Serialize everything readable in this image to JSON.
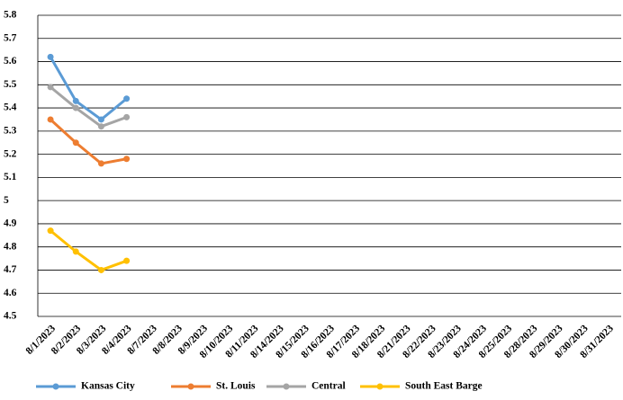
{
  "chart_data": {
    "type": "line",
    "categories": [
      "8/1/2023",
      "8/2/2023",
      "8/3/2023",
      "8/4/2023",
      "8/7/2023",
      "8/8/2023",
      "8/9/2023",
      "8/10/2023",
      "8/11/2023",
      "8/14/2023",
      "8/15/2023",
      "8/16/2023",
      "8/17/2023",
      "8/18/2023",
      "8/21/2023",
      "8/22/2023",
      "8/23/2023",
      "8/24/2023",
      "8/25/2023",
      "8/28/2023",
      "8/29/2023",
      "8/30/2023",
      "8/31/2023"
    ],
    "series": [
      {
        "name": "Kansas City",
        "color": "#5b9bd5",
        "values": [
          5.62,
          5.43,
          5.35,
          5.44,
          null,
          null,
          null,
          null,
          null,
          null,
          null,
          null,
          null,
          null,
          null,
          null,
          null,
          null,
          null,
          null,
          null,
          null,
          null
        ]
      },
      {
        "name": "St. Louis",
        "color": "#ed7d31",
        "values": [
          5.35,
          5.25,
          5.16,
          5.18,
          null,
          null,
          null,
          null,
          null,
          null,
          null,
          null,
          null,
          null,
          null,
          null,
          null,
          null,
          null,
          null,
          null,
          null,
          null
        ]
      },
      {
        "name": "Central",
        "color": "#a5a5a5",
        "values": [
          5.49,
          5.4,
          5.32,
          5.36,
          null,
          null,
          null,
          null,
          null,
          null,
          null,
          null,
          null,
          null,
          null,
          null,
          null,
          null,
          null,
          null,
          null,
          null,
          null
        ]
      },
      {
        "name": "South East Barge",
        "color": "#ffc000",
        "values": [
          4.87,
          4.78,
          4.7,
          4.74,
          null,
          null,
          null,
          null,
          null,
          null,
          null,
          null,
          null,
          null,
          null,
          null,
          null,
          null,
          null,
          null,
          null,
          null,
          null
        ]
      }
    ],
    "ylim": [
      4.5,
      5.8
    ],
    "yticks": [
      4.5,
      4.6,
      4.7,
      4.8,
      4.9,
      5,
      5.1,
      5.2,
      5.3,
      5.4,
      5.5,
      5.6,
      5.7,
      5.8
    ],
    "grid": true,
    "legend": "bottom"
  }
}
